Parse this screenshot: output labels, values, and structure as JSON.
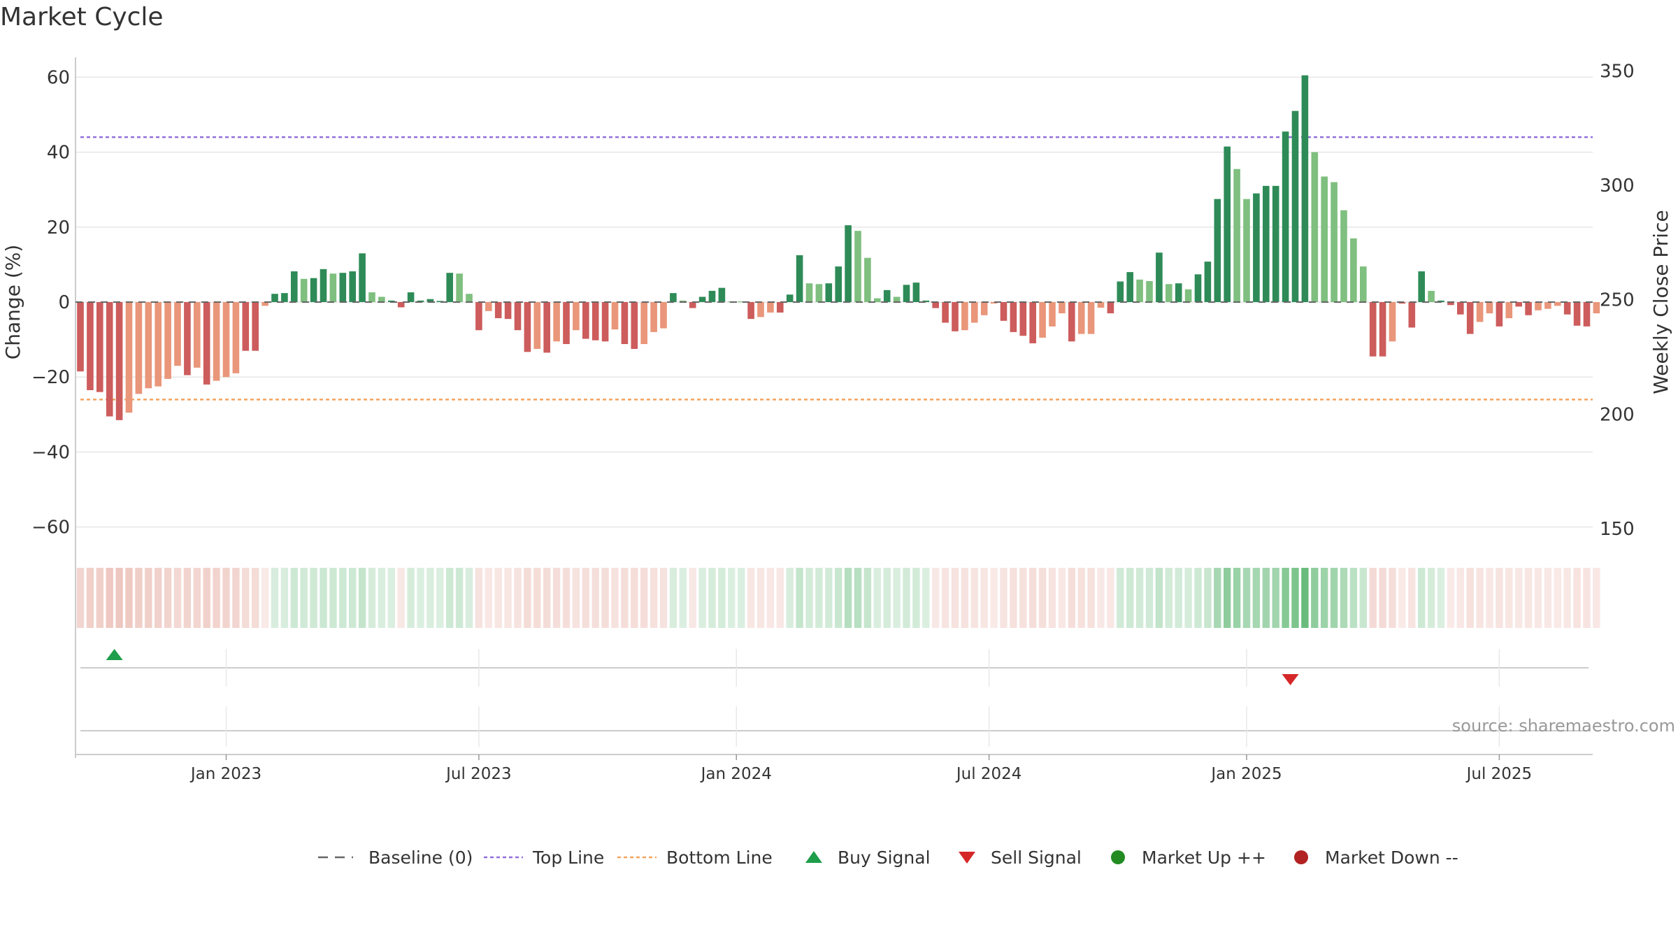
{
  "title": "Market Cycle",
  "source": "source: sharemaestro.com",
  "colors": {
    "up_dark": "#2e8b57",
    "up_light": "#7fbf7f",
    "down_dark": "#cd5c5c",
    "down_light": "#e9967a",
    "top_line": "#9370db",
    "bottom_line": "#f4a460",
    "baseline": "#666666",
    "buy": "#1e9e4a",
    "sell": "#d62728",
    "market_up": "#228b22",
    "market_down": "#b22222",
    "grid": "#e6e6e6"
  },
  "chart_data": {
    "type": "bar",
    "y_left_label": "Change (%)",
    "y_right_label": "Weekly Close Price",
    "y_left_ticks": [
      "60",
      "40",
      "20",
      "0",
      "−20",
      "−40",
      "−60"
    ],
    "y_left_tick_values": [
      60,
      40,
      20,
      0,
      -20,
      -40,
      -60
    ],
    "y_right_ticks": [
      "350",
      "300",
      "250",
      "200",
      "150"
    ],
    "y_right_tick_values": [
      350,
      300,
      250,
      200,
      150
    ],
    "ylim": [
      -65,
      66
    ],
    "y_right_lim": [
      142,
      356
    ],
    "x_ticks": [
      "Jan 2023",
      "Jul 2023",
      "Jan 2024",
      "Jul 2024",
      "Jan 2025",
      "Jul 2025"
    ],
    "x_tick_weeks": [
      15,
      41,
      67.5,
      93.5,
      120,
      146
    ],
    "top_line": 44,
    "bottom_line": -26,
    "bars": [
      [
        -18.5,
        1
      ],
      [
        -23.5,
        1
      ],
      [
        -24,
        1
      ],
      [
        -30.5,
        1
      ],
      [
        -31.5,
        1
      ],
      [
        -29.5,
        0
      ],
      [
        -24.5,
        0
      ],
      [
        -23,
        0
      ],
      [
        -22.5,
        0
      ],
      [
        -20.5,
        0
      ],
      [
        -17,
        0
      ],
      [
        -19.5,
        1
      ],
      [
        -17.5,
        0
      ],
      [
        -22,
        1
      ],
      [
        -21,
        0
      ],
      [
        -20,
        0
      ],
      [
        -19,
        0
      ],
      [
        -13,
        1
      ],
      [
        -13,
        1
      ],
      [
        -1,
        0
      ],
      [
        2.2,
        1
      ],
      [
        2.4,
        1
      ],
      [
        8.2,
        1
      ],
      [
        6.2,
        0
      ],
      [
        6.4,
        1
      ],
      [
        8.8,
        1
      ],
      [
        7.6,
        0
      ],
      [
        7.8,
        1
      ],
      [
        8.2,
        1
      ],
      [
        13,
        1
      ],
      [
        2.6,
        0
      ],
      [
        1.4,
        0
      ],
      [
        0.4,
        1
      ],
      [
        -1.4,
        1
      ],
      [
        2.6,
        1
      ],
      [
        0.4,
        1
      ],
      [
        0.8,
        1
      ],
      [
        0.3,
        1
      ],
      [
        7.8,
        1
      ],
      [
        7.6,
        0
      ],
      [
        2.2,
        0
      ],
      [
        -7.5,
        1
      ],
      [
        -2.4,
        0
      ],
      [
        -4.3,
        1
      ],
      [
        -4.5,
        1
      ],
      [
        -7.5,
        1
      ],
      [
        -13.3,
        1
      ],
      [
        -12.5,
        0
      ],
      [
        -13.5,
        1
      ],
      [
        -10.5,
        0
      ],
      [
        -11.2,
        1
      ],
      [
        -7.5,
        0
      ],
      [
        -9.8,
        1
      ],
      [
        -10.2,
        1
      ],
      [
        -10.5,
        1
      ],
      [
        -7.3,
        0
      ],
      [
        -11.2,
        1
      ],
      [
        -12.5,
        1
      ],
      [
        -11.2,
        0
      ],
      [
        -8,
        0
      ],
      [
        -7,
        0
      ],
      [
        2.4,
        1
      ],
      [
        0.4,
        0
      ],
      [
        -1.6,
        1
      ],
      [
        1.4,
        1
      ],
      [
        3,
        1
      ],
      [
        3.8,
        1
      ],
      [
        0.2,
        0
      ],
      [
        0.2,
        0
      ],
      [
        -4.5,
        1
      ],
      [
        -4,
        0
      ],
      [
        -2.8,
        0
      ],
      [
        -2.8,
        1
      ],
      [
        2,
        1
      ],
      [
        12.5,
        1
      ],
      [
        5,
        0
      ],
      [
        4.8,
        0
      ],
      [
        5,
        1
      ],
      [
        9.5,
        1
      ],
      [
        20.5,
        1
      ],
      [
        19,
        0
      ],
      [
        11.8,
        0
      ],
      [
        1,
        0
      ],
      [
        3.2,
        1
      ],
      [
        1.4,
        0
      ],
      [
        4.6,
        1
      ],
      [
        5.2,
        1
      ],
      [
        0.4,
        1
      ],
      [
        -1.6,
        1
      ],
      [
        -5.5,
        1
      ],
      [
        -7.8,
        1
      ],
      [
        -7.5,
        0
      ],
      [
        -5.5,
        0
      ],
      [
        -3.5,
        0
      ],
      [
        -0.4,
        0
      ],
      [
        -5,
        1
      ],
      [
        -8,
        1
      ],
      [
        -9,
        1
      ],
      [
        -11,
        1
      ],
      [
        -9.5,
        0
      ],
      [
        -6.5,
        0
      ],
      [
        -3,
        0
      ],
      [
        -10.5,
        1
      ],
      [
        -8.5,
        0
      ],
      [
        -8.5,
        0
      ],
      [
        -1.5,
        0
      ],
      [
        -3,
        1
      ],
      [
        5.5,
        1
      ],
      [
        8,
        1
      ],
      [
        6,
        0
      ],
      [
        5.6,
        0
      ],
      [
        13.2,
        1
      ],
      [
        4.8,
        0
      ],
      [
        5,
        1
      ],
      [
        3.4,
        0
      ],
      [
        7.4,
        1
      ],
      [
        10.8,
        1
      ],
      [
        27.5,
        1
      ],
      [
        41.5,
        1
      ],
      [
        35.5,
        0
      ],
      [
        27.5,
        0
      ],
      [
        29,
        1
      ],
      [
        31,
        1
      ],
      [
        31,
        1
      ],
      [
        45.5,
        1
      ],
      [
        51,
        1
      ],
      [
        60.5,
        1
      ],
      [
        40,
        0
      ],
      [
        33.5,
        0
      ],
      [
        32,
        0
      ],
      [
        24.5,
        0
      ],
      [
        17,
        0
      ],
      [
        9.5,
        0
      ],
      [
        -14.5,
        1
      ],
      [
        -14.5,
        1
      ],
      [
        -10.5,
        0
      ],
      [
        -0.4,
        1
      ],
      [
        -6.8,
        1
      ],
      [
        8.2,
        1
      ],
      [
        3,
        0
      ],
      [
        0.4,
        1
      ],
      [
        -0.8,
        1
      ],
      [
        -3.3,
        1
      ],
      [
        -8.5,
        1
      ],
      [
        -5.3,
        0
      ],
      [
        -3,
        0
      ],
      [
        -6.5,
        1
      ],
      [
        -4.3,
        0
      ],
      [
        -1.2,
        1
      ],
      [
        -3.5,
        1
      ],
      [
        -2.2,
        0
      ],
      [
        -1.8,
        0
      ],
      [
        -1,
        0
      ],
      [
        -3.3,
        1
      ],
      [
        -6.3,
        1
      ],
      [
        -6.5,
        1
      ],
      [
        -3,
        0
      ]
    ],
    "signals": [
      {
        "type": "buy",
        "week": 3.5
      },
      {
        "type": "sell",
        "week": 124.5
      }
    ],
    "legend": [
      {
        "label": "Baseline (0)",
        "kind": "dash",
        "color": "baseline"
      },
      {
        "label": "Top Line",
        "kind": "dot",
        "color": "top_line"
      },
      {
        "label": "Bottom Line",
        "kind": "dot",
        "color": "bottom_line"
      },
      {
        "label": "Buy Signal",
        "kind": "triangle-up",
        "color": "buy"
      },
      {
        "label": "Sell Signal",
        "kind": "triangle-down",
        "color": "sell"
      },
      {
        "label": "Market Up ++",
        "kind": "circle",
        "color": "market_up"
      },
      {
        "label": "Market Down --",
        "kind": "circle",
        "color": "market_down"
      }
    ],
    "legend_position": "bottom-center",
    "grid": true
  }
}
